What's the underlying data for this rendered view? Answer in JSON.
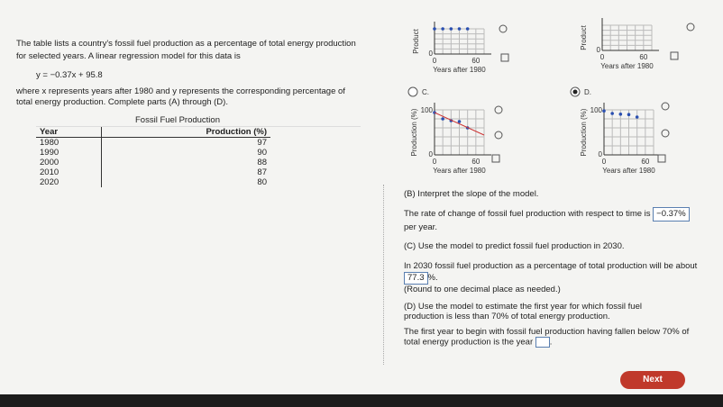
{
  "problem": {
    "intro": "The table lists a country's fossil fuel production as a percentage of total energy production for selected years. A linear regression model for this data is",
    "model": "y = −0.37x + 95.8",
    "explanation": "where x represents years after 1980 and y represents the corresponding percentage of total energy production. Complete parts (A) through (D).",
    "table": {
      "title": "Fossil Fuel Production",
      "headers": [
        "Year",
        "Production (%)"
      ],
      "rows": [
        [
          1980,
          97
        ],
        [
          1990,
          90
        ],
        [
          2000,
          88
        ],
        [
          2010,
          87
        ],
        [
          2020,
          80
        ]
      ]
    }
  },
  "graphs": {
    "y_label_short": "Product",
    "y_label": "Production (%)",
    "x_label": "Years after 1980",
    "y_top": "100",
    "zero": "0",
    "x_end": "60",
    "options": [
      "C.",
      "D."
    ]
  },
  "parts": {
    "b": {
      "prompt": "(B) Interpret the slope of the model.",
      "sentence": "The rate of change of fossil fuel production with respect to time is",
      "answer": "−0.37%",
      "after": "per year."
    },
    "c": {
      "prompt": "(C) Use the model to predict fossil fuel production in 2030.",
      "sentence": "In 2030 fossil fuel production as a percentage of total production will be about",
      "answer": "77.3",
      "after": "%.",
      "note": "(Round to one decimal place as needed.)"
    },
    "d": {
      "prompt": "(D) Use the model to estimate the first year for which fossil fuel production is less than 70% of total energy production.",
      "sentence": "The first year to begin with fossil fuel production having fallen below 70% of total energy production is the year",
      "after": "."
    }
  },
  "next": "Next"
}
